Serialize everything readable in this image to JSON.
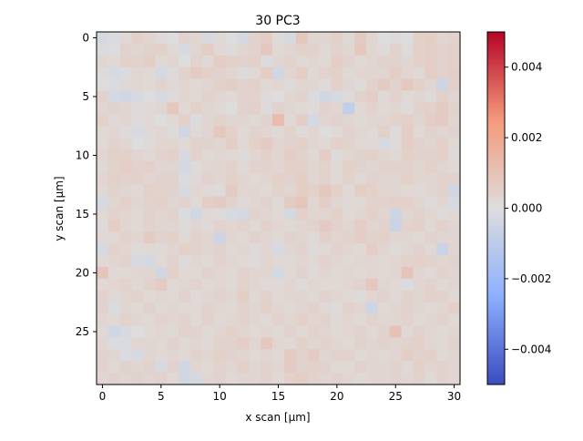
{
  "chart_data": {
    "type": "heatmap",
    "title": "30 PC3",
    "xlabel": "x scan [µm]",
    "ylabel": "y scan [µm]",
    "x_ticks": [
      "0",
      "5",
      "10",
      "15",
      "20",
      "25",
      "30"
    ],
    "y_ticks": [
      "0",
      "5",
      "10",
      "15",
      "20",
      "25"
    ],
    "grid": false,
    "colormap": "coolwarm",
    "colorbar": {
      "vmin": -0.005,
      "vmax": 0.005,
      "ticks": [
        {
          "value": 0.004,
          "label": "0.004"
        },
        {
          "value": 0.002,
          "label": "0.002"
        },
        {
          "value": 0.0,
          "label": "0.000"
        },
        {
          "value": -0.002,
          "label": "−0.002"
        },
        {
          "value": -0.004,
          "label": "−0.004"
        }
      ]
    },
    "x_range": [
      -0.5,
      30.5
    ],
    "y_range": [
      -0.5,
      29.5
    ],
    "cols": 31,
    "rows": 30,
    "values_note_scale": 0.0001,
    "values": [
      [
        -3,
        -1,
        2,
        5,
        3,
        1,
        0,
        4,
        3,
        -2,
        2,
        0,
        -3,
        4,
        6,
        1,
        -2,
        8,
        3,
        3,
        5,
        2,
        7,
        3,
        0,
        1,
        0,
        5,
        6,
        3,
        4
      ],
      [
        -1,
        0,
        4,
        3,
        4,
        5,
        2,
        -2,
        3,
        6,
        2,
        1,
        3,
        4,
        8,
        2,
        3,
        5,
        4,
        2,
        4,
        3,
        8,
        3,
        1,
        4,
        1,
        5,
        6,
        4,
        5
      ],
      [
        3,
        2,
        5,
        4,
        6,
        2,
        3,
        0,
        4,
        2,
        6,
        5,
        4,
        5,
        -1,
        3,
        4,
        2,
        3,
        2,
        6,
        4,
        2,
        3,
        4,
        4,
        3,
        5,
        6,
        4,
        5
      ],
      [
        1,
        -2,
        -1,
        3,
        2,
        -3,
        1,
        4,
        7,
        5,
        4,
        3,
        1,
        2,
        6,
        -4,
        3,
        6,
        2,
        4,
        5,
        2,
        3,
        3,
        3,
        6,
        3,
        2,
        6,
        4,
        6
      ],
      [
        0,
        -1,
        2,
        3,
        2,
        4,
        2,
        3,
        2,
        3,
        5,
        6,
        4,
        5,
        2,
        3,
        1,
        3,
        3,
        1,
        5,
        3,
        1,
        4,
        7,
        4,
        8,
        5,
        3,
        -5,
        5
      ],
      [
        4,
        -3,
        -4,
        -2,
        0,
        -2,
        1,
        3,
        2,
        4,
        3,
        2,
        4,
        4,
        1,
        0,
        3,
        4,
        -1,
        -4,
        -2,
        1,
        4,
        6,
        2,
        4,
        2,
        3,
        1,
        5,
        3
      ],
      [
        3,
        4,
        3,
        1,
        2,
        3,
        8,
        2,
        5,
        3,
        2,
        0,
        4,
        5,
        1,
        4,
        3,
        2,
        1,
        4,
        3,
        -8,
        2,
        4,
        2,
        3,
        1,
        4,
        5,
        7,
        4
      ],
      [
        5,
        2,
        3,
        1,
        2,
        0,
        2,
        5,
        -1,
        3,
        4,
        3,
        3,
        2,
        4,
        12,
        2,
        6,
        -3,
        3,
        4,
        3,
        2,
        3,
        3,
        4,
        5,
        3,
        6,
        7,
        3
      ],
      [
        2,
        3,
        1,
        -2,
        2,
        3,
        1,
        -4,
        2,
        3,
        8,
        5,
        2,
        4,
        3,
        2,
        4,
        1,
        3,
        0,
        2,
        4,
        3,
        2,
        5,
        1,
        6,
        2,
        4,
        3,
        4
      ],
      [
        2,
        4,
        3,
        0,
        1,
        3,
        3,
        2,
        4,
        4,
        3,
        6,
        2,
        5,
        7,
        3,
        4,
        5,
        3,
        2,
        5,
        4,
        2,
        2,
        -2,
        1,
        6,
        4,
        3,
        5,
        2
      ],
      [
        3,
        5,
        5,
        3,
        2,
        4,
        5,
        -2,
        4,
        2,
        3,
        2,
        1,
        3,
        5,
        3,
        6,
        4,
        2,
        6,
        1,
        3,
        4,
        5,
        3,
        2,
        5,
        4,
        4,
        5,
        1
      ],
      [
        2,
        4,
        6,
        4,
        5,
        3,
        3,
        -3,
        1,
        3,
        3,
        4,
        2,
        4,
        4,
        3,
        5,
        5,
        3,
        4,
        2,
        5,
        4,
        3,
        4,
        4,
        4,
        3,
        5,
        3,
        2
      ],
      [
        3,
        5,
        4,
        5,
        3,
        4,
        4,
        -1,
        2,
        4,
        3,
        5,
        3,
        2,
        3,
        5,
        4,
        6,
        3,
        4,
        2,
        4,
        2,
        4,
        3,
        3,
        5,
        3,
        3,
        4,
        4
      ],
      [
        2,
        4,
        3,
        2,
        5,
        4,
        4,
        -2,
        3,
        2,
        1,
        7,
        3,
        3,
        2,
        4,
        3,
        6,
        5,
        8,
        5,
        2,
        6,
        5,
        3,
        3,
        2,
        2,
        3,
        4,
        -4
      ],
      [
        -2,
        3,
        5,
        3,
        4,
        5,
        3,
        4,
        2,
        6,
        7,
        4,
        2,
        3,
        4,
        2,
        7,
        9,
        3,
        6,
        3,
        2,
        2,
        4,
        4,
        5,
        5,
        3,
        1,
        3,
        -2
      ],
      [
        2,
        4,
        3,
        2,
        4,
        3,
        4,
        -1,
        -4,
        2,
        1,
        -2,
        -3,
        4,
        3,
        2,
        -3,
        5,
        3,
        3,
        5,
        2,
        3,
        5,
        3,
        -5,
        3,
        4,
        3,
        1,
        2
      ],
      [
        1,
        6,
        3,
        2,
        4,
        3,
        3,
        1,
        3,
        2,
        4,
        3,
        4,
        2,
        5,
        3,
        2,
        3,
        4,
        7,
        4,
        3,
        6,
        3,
        4,
        -6,
        4,
        5,
        2,
        5,
        3
      ],
      [
        2,
        2,
        4,
        3,
        7,
        4,
        5,
        2,
        4,
        3,
        -5,
        3,
        2,
        4,
        3,
        2,
        4,
        3,
        2,
        5,
        3,
        4,
        6,
        4,
        5,
        3,
        3,
        2,
        4,
        3,
        3
      ],
      [
        -2,
        4,
        3,
        1,
        2,
        2,
        3,
        5,
        4,
        3,
        4,
        2,
        3,
        1,
        3,
        -2,
        3,
        4,
        1,
        2,
        4,
        3,
        2,
        6,
        3,
        1,
        3,
        4,
        2,
        -6,
        3
      ],
      [
        2,
        3,
        4,
        -2,
        -3,
        2,
        4,
        1,
        3,
        2,
        4,
        3,
        2,
        1,
        3,
        2,
        2,
        3,
        2,
        4,
        3,
        2,
        3,
        3,
        2,
        3,
        4,
        5,
        4,
        3,
        4
      ],
      [
        9,
        2,
        2,
        3,
        3,
        -4,
        5,
        2,
        2,
        4,
        3,
        2,
        4,
        3,
        3,
        -3,
        2,
        4,
        1,
        3,
        2,
        3,
        2,
        3,
        2,
        3,
        9,
        3,
        2,
        4,
        3
      ],
      [
        2,
        3,
        4,
        2,
        4,
        7,
        2,
        3,
        4,
        2,
        3,
        2,
        4,
        3,
        2,
        2,
        3,
        1,
        3,
        2,
        2,
        3,
        4,
        8,
        3,
        2,
        -1,
        3,
        4,
        2,
        3
      ],
      [
        4,
        2,
        3,
        4,
        2,
        3,
        2,
        4,
        1,
        3,
        4,
        3,
        6,
        2,
        4,
        2,
        3,
        3,
        2,
        4,
        3,
        2,
        1,
        3,
        4,
        2,
        4,
        3,
        5,
        4,
        2
      ],
      [
        4,
        -1,
        3,
        2,
        4,
        2,
        3,
        2,
        2,
        4,
        3,
        2,
        4,
        3,
        5,
        3,
        2,
        3,
        4,
        2,
        1,
        4,
        3,
        -5,
        2,
        3,
        4,
        3,
        2,
        3,
        5
      ],
      [
        3,
        2,
        4,
        3,
        2,
        4,
        3,
        4,
        2,
        4,
        2,
        3,
        4,
        3,
        2,
        4,
        3,
        5,
        3,
        4,
        2,
        3,
        2,
        4,
        3,
        3,
        4,
        2,
        3,
        4,
        2
      ],
      [
        2,
        -4,
        -2,
        0,
        2,
        3,
        2,
        4,
        4,
        2,
        3,
        5,
        3,
        2,
        3,
        2,
        4,
        2,
        4,
        3,
        2,
        3,
        4,
        2,
        4,
        10,
        2,
        4,
        3,
        2,
        3
      ],
      [
        3,
        -1,
        -1,
        3,
        3,
        2,
        4,
        2,
        3,
        2,
        4,
        4,
        6,
        3,
        8,
        3,
        2,
        5,
        3,
        4,
        3,
        2,
        4,
        3,
        4,
        3,
        4,
        5,
        3,
        2,
        4
      ],
      [
        4,
        3,
        -1,
        -2,
        3,
        2,
        3,
        2,
        4,
        3,
        5,
        4,
        3,
        2,
        3,
        2,
        7,
        4,
        7,
        3,
        4,
        4,
        2,
        3,
        2,
        3,
        6,
        4,
        5,
        2,
        3
      ],
      [
        4,
        2,
        4,
        3,
        4,
        -2,
        4,
        -4,
        3,
        2,
        4,
        3,
        5,
        3,
        4,
        3,
        7,
        4,
        5,
        4,
        2,
        2,
        4,
        3,
        3,
        4,
        2,
        5,
        3,
        4,
        3
      ],
      [
        3,
        4,
        3,
        4,
        3,
        4,
        2,
        -4,
        -3,
        3,
        4,
        2,
        3,
        3,
        4,
        2,
        5,
        6,
        4,
        3,
        4,
        3,
        2,
        3,
        3,
        4,
        3,
        4,
        2,
        4,
        3
      ]
    ]
  }
}
